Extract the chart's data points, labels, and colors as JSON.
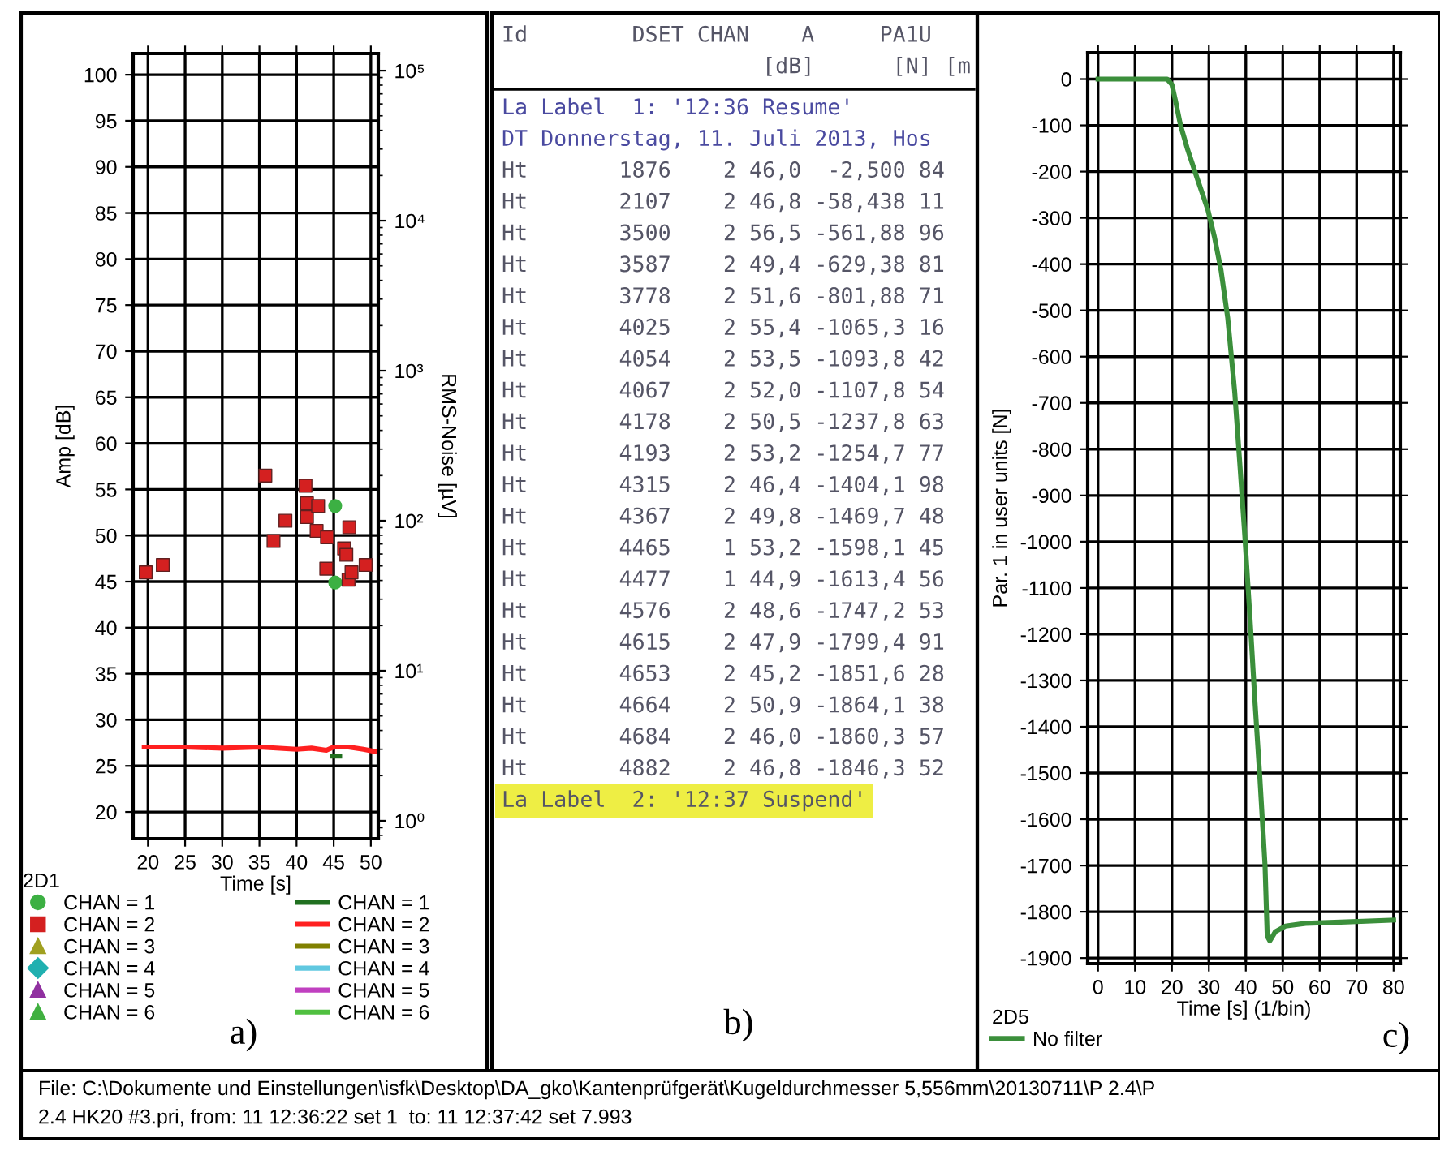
{
  "chart_data": [
    {
      "type": "scatter",
      "xlabel": "Time [s]",
      "ylabel": "Amp [dB]",
      "y2label": "RMS-Noise [µV]",
      "legend_title": "2D1",
      "legend": "bottom",
      "grid": true,
      "log": "y2",
      "xlim": [
        18,
        51
      ],
      "xticks": [
        20,
        25,
        30,
        35,
        40,
        45,
        50
      ],
      "ylim": [
        17.1,
        102.3
      ],
      "yticks": [
        20,
        25,
        30,
        35,
        40,
        45,
        50,
        55,
        60,
        65,
        70,
        75,
        80,
        85,
        90,
        95,
        100
      ],
      "y2lim": [
        0.76,
        130000
      ],
      "y2ticks": [
        {
          "value": 1,
          "label": "10⁰"
        },
        {
          "value": 10,
          "label": "10¹"
        },
        {
          "value": 100,
          "label": "10²"
        },
        {
          "value": 1000,
          "label": "10³"
        },
        {
          "value": 10000,
          "label": "10⁴"
        },
        {
          "value": 100000,
          "label": "10⁵"
        }
      ],
      "annotations": [
        "a)"
      ],
      "series": [
        {
          "name": "CHAN = 1",
          "type": "scatter",
          "marker": "circle",
          "color": "#3cb043",
          "x": [
            45.2,
            45.2
          ],
          "values": [
            53.2,
            44.9
          ]
        },
        {
          "name": "CHAN = 2",
          "type": "scatter",
          "marker": "square",
          "color": "#d42020",
          "x": [
            19.7,
            22.0,
            35.8,
            36.9,
            38.5,
            41.2,
            41.4,
            41.4,
            42.7,
            42.9,
            44.0,
            44.1,
            46.4,
            46.7,
            47.0,
            47.1,
            47.4,
            49.3
          ],
          "values": [
            46.0,
            46.8,
            56.5,
            49.4,
            51.6,
            55.4,
            53.5,
            52.0,
            50.5,
            53.2,
            46.4,
            49.8,
            48.6,
            47.9,
            45.2,
            50.9,
            46.0,
            46.8
          ]
        },
        {
          "name": "CHAN = 3",
          "type": "scatter",
          "marker": "triangle",
          "color": "#a0a020"
        },
        {
          "name": "CHAN = 4",
          "type": "scatter",
          "marker": "diamond",
          "color": "#20b0b0"
        },
        {
          "name": "CHAN = 5",
          "type": "scatter",
          "marker": "triangle",
          "color": "#9030a0"
        },
        {
          "name": "CHAN = 6",
          "type": "scatter",
          "marker": "triangle",
          "color": "#40b040"
        },
        {
          "name": "CHAN = 1",
          "type": "line",
          "axis": "y2",
          "color": "#207020",
          "x": [
            44.8,
            45.8
          ],
          "values": [
            2.7,
            2.7
          ]
        },
        {
          "name": "CHAN = 2",
          "type": "line",
          "axis": "y2",
          "color": "#ff2020",
          "x": [
            19.5,
            25,
            30,
            35,
            40,
            42,
            44,
            45,
            47,
            49,
            50.5
          ],
          "values": [
            3.1,
            3.1,
            3.05,
            3.1,
            3.0,
            3.05,
            2.95,
            3.1,
            3.1,
            3.0,
            2.9
          ]
        },
        {
          "name": "CHAN = 3",
          "type": "line",
          "axis": "y2",
          "color": "#808000"
        },
        {
          "name": "CHAN = 4",
          "type": "line",
          "axis": "y2",
          "color": "#60c8e0"
        },
        {
          "name": "CHAN = 5",
          "type": "line",
          "axis": "y2",
          "color": "#c040c0"
        },
        {
          "name": "CHAN = 6",
          "type": "line",
          "axis": "y2",
          "color": "#50c040"
        }
      ]
    },
    {
      "type": "other",
      "annotations": [
        "Id        DSET CHAN    A     PA1U",
        "                    [dB]      [N] [m",
        "La Label  1: '12:36 Resume'",
        "DT Donnerstag, 11. Juli 2013, Hos",
        "Ht       1876    2 46,0  -2,500 84",
        "Ht       2107    2 46,8 -58,438 11",
        "Ht       3500    2 56,5 -561,88 96",
        "Ht       3587    2 49,4 -629,38 81",
        "Ht       3778    2 51,6 -801,88 71",
        "Ht       4025    2 55,4 -1065,3 16",
        "Ht       4054    2 53,5 -1093,8 42",
        "Ht       4067    2 52,0 -1107,8 54",
        "Ht       4178    2 50,5 -1237,8 63",
        "Ht       4193    2 53,2 -1254,7 77",
        "Ht       4315    2 46,4 -1404,1 98",
        "Ht       4367    2 49,8 -1469,7 48",
        "Ht       4465    1 53,2 -1598,1 45",
        "Ht       4477    1 44,9 -1613,4 56",
        "Ht       4576    2 48,6 -1747,2 53",
        "Ht       4615    2 47,9 -1799,4 91",
        "Ht       4653    2 45,2 -1851,6 28",
        "Ht       4664    2 50,9 -1864,1 38",
        "Ht       4684    2 46,0 -1860,3 57",
        "Ht       4882    2 46,8 -1846,3 52",
        "La Label  2: '12:37 Suspend'",
        "b)"
      ]
    },
    {
      "type": "line",
      "xlabel": "Time [s] (1/bin)",
      "ylabel": "Par. 1 in user units [N]",
      "legend_title": "2D5",
      "legend": "bottom left",
      "grid": true,
      "xlim": [
        -2.8,
        81.8
      ],
      "xticks": [
        0,
        10,
        20,
        30,
        40,
        50,
        60,
        70,
        80
      ],
      "ylim": [
        -1912,
        57
      ],
      "yticks": [
        -1900,
        -1800,
        -1700,
        -1600,
        -1500,
        -1400,
        -1300,
        -1200,
        -1100,
        -1000,
        -900,
        -800,
        -700,
        -600,
        -500,
        -400,
        -300,
        -200,
        -100,
        0
      ],
      "annotations": [
        "c)"
      ],
      "series": [
        {
          "name": "No filter",
          "color": "#3b8f3b",
          "x": [
            0,
            18.7,
            20,
            21,
            22.3,
            24.2,
            26.9,
            29.7,
            31.5,
            33.3,
            35.1,
            37,
            38.3,
            39.7,
            41.2,
            42.5,
            43.8,
            45.2,
            45.8,
            46.5,
            48,
            50.7,
            56.2,
            67.2,
            80
          ],
          "values": [
            0,
            0,
            -12,
            -48,
            -99,
            -151,
            -216,
            -282,
            -341,
            -414,
            -516,
            -677,
            -823,
            -984,
            -1174,
            -1349,
            -1510,
            -1700,
            -1853,
            -1863,
            -1843,
            -1831,
            -1825,
            -1822,
            -1818
          ]
        }
      ]
    },
    {
      "type": "other",
      "annotations": [
        "File: C:\\Dokumente und Einstellungen\\isfk\\Desktop\\DA_gko\\Kantenprüfgerät\\Kugeldurchmesser 5,556mm\\20130711\\P 2.4\\P",
        "2.4 HK20 #3.pri, from: 11 12:36:22 set 1  to: 11 12:37:42 set 7.993"
      ]
    }
  ]
}
